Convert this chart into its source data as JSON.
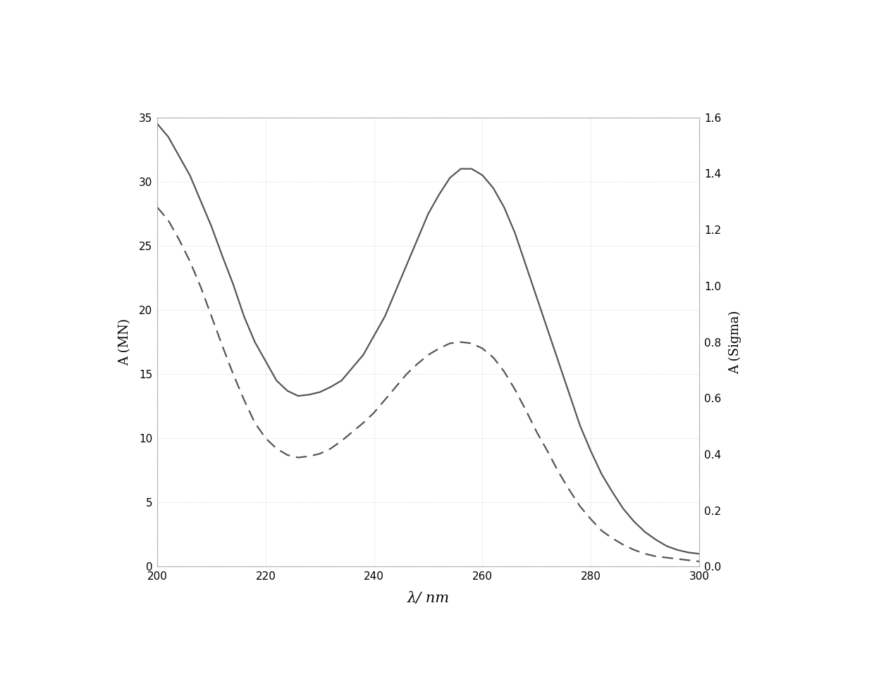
{
  "x_min": 200,
  "x_max": 300,
  "x_ticks": [
    200,
    220,
    240,
    260,
    280,
    300
  ],
  "xlabel": "λ/ nm",
  "ylabel_left": "A (MN)",
  "ylabel_right": "A (Sigma)",
  "ylim_left": [
    0,
    35
  ],
  "ylim_right": [
    0,
    1.6
  ],
  "yticks_left": [
    0,
    5,
    10,
    15,
    20,
    25,
    30,
    35
  ],
  "yticks_right": [
    0,
    0.2,
    0.4,
    0.6,
    0.8,
    1.0,
    1.2,
    1.4,
    1.6
  ],
  "solid_x": [
    200,
    202,
    204,
    206,
    208,
    210,
    212,
    214,
    216,
    218,
    220,
    222,
    224,
    226,
    228,
    230,
    232,
    234,
    236,
    238,
    240,
    242,
    244,
    246,
    248,
    250,
    252,
    254,
    256,
    258,
    260,
    262,
    264,
    266,
    268,
    270,
    272,
    274,
    276,
    278,
    280,
    282,
    284,
    286,
    288,
    290,
    292,
    294,
    296,
    298,
    300
  ],
  "solid_y": [
    34.5,
    33.5,
    32.0,
    30.5,
    28.5,
    26.5,
    24.2,
    22.0,
    19.5,
    17.5,
    16.0,
    14.5,
    13.7,
    13.3,
    13.4,
    13.6,
    14.0,
    14.5,
    15.5,
    16.5,
    18.0,
    19.5,
    21.5,
    23.5,
    25.5,
    27.5,
    29.0,
    30.3,
    31.0,
    31.0,
    30.5,
    29.5,
    28.0,
    26.0,
    23.5,
    21.0,
    18.5,
    16.0,
    13.5,
    11.0,
    9.0,
    7.2,
    5.8,
    4.5,
    3.5,
    2.7,
    2.1,
    1.6,
    1.3,
    1.1,
    1.0
  ],
  "dashed_x": [
    200,
    202,
    204,
    206,
    208,
    210,
    212,
    214,
    216,
    218,
    220,
    222,
    224,
    226,
    228,
    230,
    232,
    234,
    236,
    238,
    240,
    242,
    244,
    246,
    248,
    250,
    252,
    254,
    256,
    258,
    260,
    262,
    264,
    266,
    268,
    270,
    272,
    274,
    276,
    278,
    280,
    282,
    284,
    286,
    288,
    290,
    292,
    294,
    296,
    298,
    300
  ],
  "dashed_y": [
    28.0,
    27.0,
    25.5,
    23.8,
    21.8,
    19.5,
    17.2,
    15.0,
    13.0,
    11.2,
    10.0,
    9.2,
    8.7,
    8.5,
    8.6,
    8.8,
    9.2,
    9.8,
    10.5,
    11.2,
    12.0,
    13.0,
    14.0,
    15.0,
    15.8,
    16.5,
    17.0,
    17.4,
    17.5,
    17.4,
    17.0,
    16.3,
    15.2,
    13.8,
    12.2,
    10.5,
    9.0,
    7.4,
    6.0,
    4.7,
    3.7,
    2.8,
    2.2,
    1.7,
    1.3,
    1.0,
    0.8,
    0.7,
    0.6,
    0.5,
    0.4
  ],
  "line_color": "#555555",
  "background_color": "#ffffff",
  "grid_color": "#cccccc",
  "figure_bg": "#ffffff",
  "spine_color": "#aaaaaa"
}
